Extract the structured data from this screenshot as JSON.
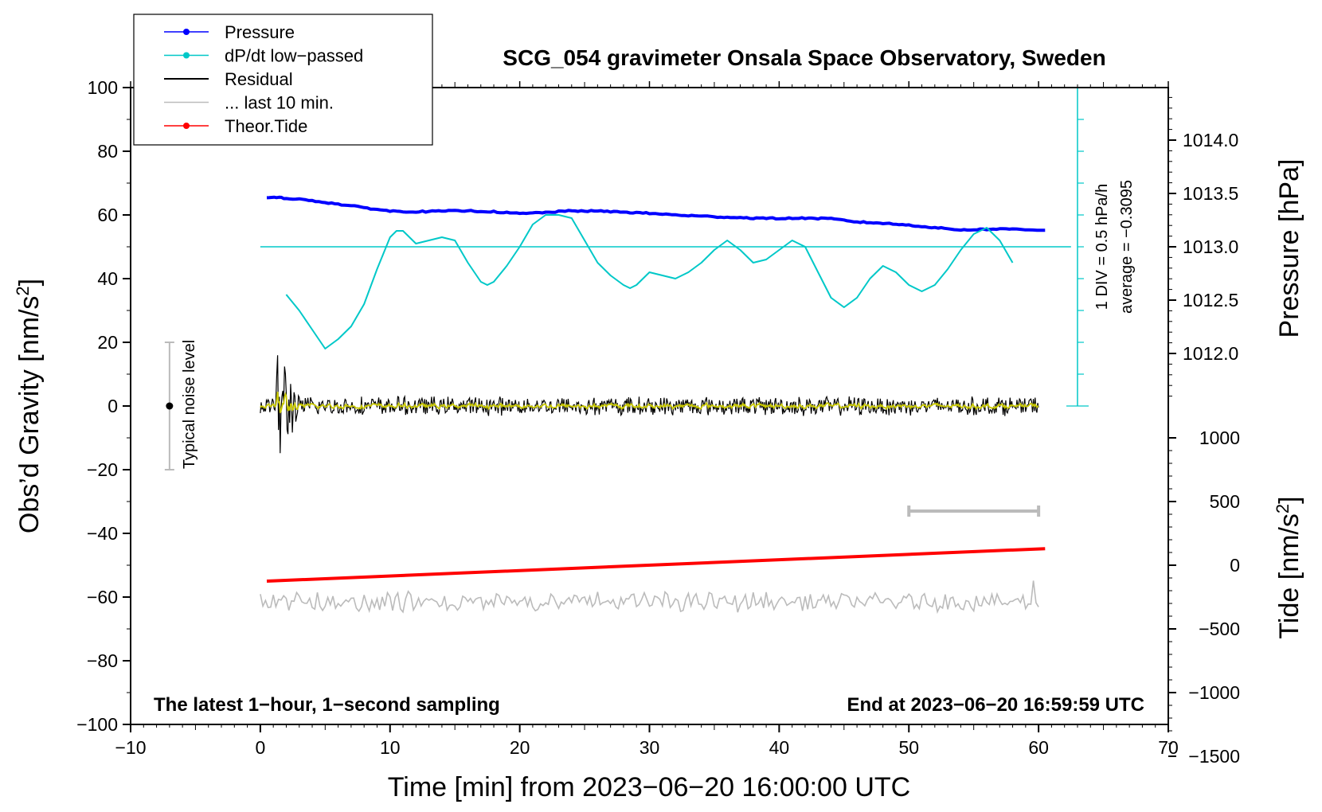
{
  "chart_data": {
    "type": "line",
    "title": "SCG_054 gravimeter Onsala Space Observatory, Sweden",
    "xlabel": "Time [min] from 2023−06−20 16:00:00 UTC",
    "ylabel_left": "Obs’d Gravity [nm/s",
    "ylabel_left_sup": "2",
    "ylabel_left_end": "]",
    "ylabel_right_pressure": "Pressure [hPa]",
    "ylabel_right_tide": "Tide [nm/s",
    "ylabel_right_tide_sup": "2",
    "ylabel_right_tide_end": "]",
    "xlim": [
      -10,
      70
    ],
    "ylim": [
      -100,
      100
    ],
    "x_ticks": [
      -10,
      0,
      10,
      20,
      30,
      40,
      50,
      60,
      70
    ],
    "x_tick_labels": [
      "−10",
      "0",
      "10",
      "20",
      "30",
      "40",
      "50",
      "60",
      "70"
    ],
    "y_ticks": [
      -100,
      -80,
      -60,
      -40,
      -20,
      0,
      20,
      40,
      60,
      80,
      100
    ],
    "y_tick_labels": [
      "−100",
      "−80",
      "−60",
      "−40",
      "−20",
      "0",
      "20",
      "40",
      "60",
      "80",
      "100"
    ],
    "pressure_ticks": [
      1012.0,
      1012.5,
      1013.0,
      1013.5,
      1014.0
    ],
    "pressure_tick_labels": [
      "1012.0",
      "1012.5",
      "1013.0",
      "1013.5",
      "1014.0"
    ],
    "pressure_map": {
      "value_ref": 1013.0,
      "gravity_ref": 50,
      "gravity_per_hpa": 33.5
    },
    "tide_ticks": [
      -1500,
      -1000,
      -500,
      0,
      500,
      1000
    ],
    "tide_tick_labels": [
      "−1500",
      "−1000",
      "−500",
      "0",
      "500",
      "1000"
    ],
    "tide_map": {
      "gravity_per_unit": 0.04,
      "gravity_at_zero": -50.0
    },
    "legend": [
      {
        "label": "Pressure",
        "color": "#0000ff",
        "marker": true
      },
      {
        "label": "dP/dt low−passed",
        "color": "#00c8c8",
        "marker": true
      },
      {
        "label": "Residual",
        "color": "#000000",
        "marker": false
      },
      {
        "label": "... last 10 min.",
        "color": "#bbbbbb",
        "marker": false
      },
      {
        "label": "Theor.Tide",
        "color": "#ff0000",
        "marker": true
      }
    ],
    "series": [
      {
        "name": "Pressure",
        "color": "#0000ff",
        "x": [
          0.5,
          2,
          4,
          6,
          8,
          10,
          12,
          14,
          16,
          18,
          20,
          22,
          24,
          26,
          28,
          30,
          32,
          34,
          36,
          38,
          40,
          42,
          44,
          46,
          48,
          50,
          52,
          54,
          56,
          58,
          60.5
        ],
        "y": [
          65.5,
          65.3,
          64.5,
          63.4,
          62.3,
          61.2,
          61.0,
          61.2,
          61.3,
          61.0,
          60.4,
          60.8,
          61.3,
          61.2,
          60.9,
          60.5,
          60.0,
          59.6,
          59.3,
          59.0,
          58.9,
          59.0,
          58.8,
          57.8,
          57.4,
          56.8,
          56.0,
          55.3,
          55.5,
          55.6,
          55.2
        ]
      },
      {
        "name": "dP/dt low−passed",
        "color": "#00c8c8",
        "x": [
          2,
          3,
          4,
          5,
          6,
          7,
          8,
          9,
          10,
          10.5,
          11,
          12,
          13,
          14,
          15,
          16,
          17,
          17.5,
          18,
          19,
          20,
          21,
          22,
          23,
          24,
          25,
          26,
          27,
          28,
          28.5,
          29,
          30,
          31,
          32,
          33,
          34,
          35,
          36,
          37,
          38,
          39,
          40,
          41,
          42,
          43,
          44,
          45,
          46,
          47,
          48,
          49,
          50,
          51,
          52,
          53,
          54,
          55,
          56,
          57,
          58
        ],
        "y": [
          35,
          30,
          24,
          18,
          21,
          25,
          32,
          43,
          53,
          55,
          55,
          51,
          52,
          53,
          52,
          45,
          39,
          38,
          39,
          44,
          50,
          57,
          60,
          60,
          59,
          52,
          45,
          41,
          38,
          37,
          38,
          42,
          41,
          40,
          42,
          45,
          49,
          52,
          49,
          45,
          46,
          49,
          52,
          50,
          42,
          34,
          31,
          34,
          40,
          44,
          42,
          38,
          36,
          38,
          43,
          49,
          54,
          56,
          52,
          45
        ]
      },
      {
        "name": "Theor.Tide",
        "color": "#ff0000",
        "x": [
          0.5,
          60.5
        ],
        "y": [
          -55.0,
          -44.8
        ]
      }
    ],
    "dpdt_reference": {
      "y": 50,
      "x_start": 0,
      "x_end": 62.5
    },
    "dpdt_scale_label": "1 DIV = 0.5 hPa/h",
    "dpdt_average_label": "average = −0.3095",
    "residual": {
      "color": "#000000",
      "x_start": 0,
      "x_end": 60,
      "samples": 901,
      "typical_amplitude": 2.5,
      "initial_burst_amplitude": 16,
      "burst_end_min": 3
    },
    "residual_filtered": {
      "color": "#c8c800"
    },
    "last_10_min": {
      "color": "#bbbbbb",
      "x_start": 0,
      "x_end": 60,
      "baseline": -61.5,
      "amplitude": 2.5,
      "samples": 301
    },
    "last_10_min_bar": {
      "x_start": 50,
      "x_end": 60,
      "y": -33.0,
      "color": "#bbbbbb"
    },
    "noise_indicator": {
      "x": -7,
      "y_center": 0,
      "y_low": -20,
      "y_high": 20,
      "label": "Typical noise level"
    },
    "annotation_left": "The latest 1−hour, 1−second sampling",
    "annotation_right": "End at 2023−06−20 16:59:59 UTC"
  }
}
